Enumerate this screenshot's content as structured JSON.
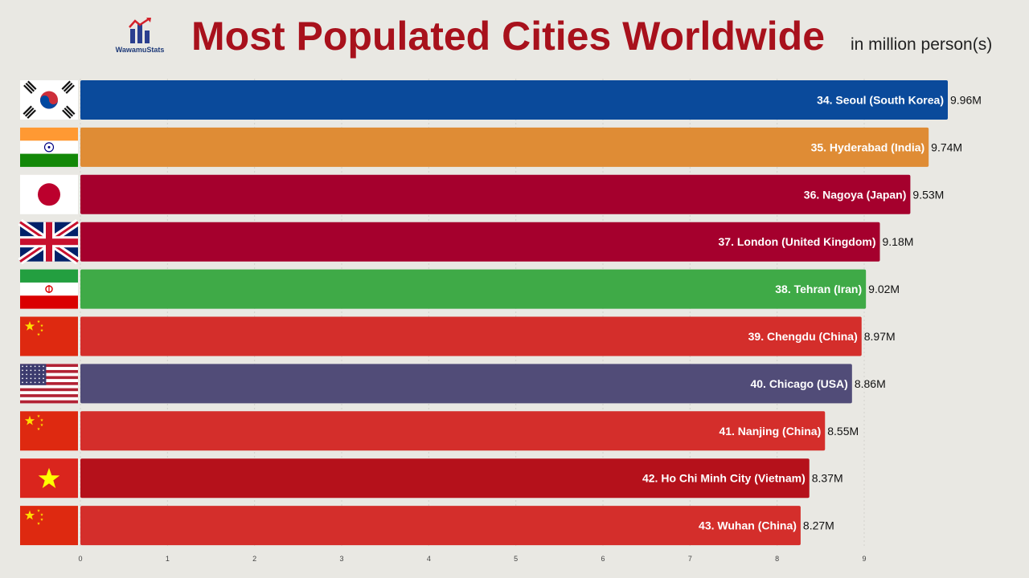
{
  "header": {
    "logo_text": "WawamuStats",
    "title": "Most Populated Cities Worldwide",
    "subtitle": "in million person(s)"
  },
  "chart_data": {
    "type": "bar",
    "orientation": "horizontal",
    "title": "Most Populated Cities Worldwide",
    "unit_label": "in million person(s)",
    "xlim": [
      0,
      9.96
    ],
    "xticks": [
      0,
      1,
      2,
      3,
      4,
      5,
      6,
      7,
      8,
      9
    ],
    "categories": [
      "34. Seoul (South Korea)",
      "35. Hyderabad (India)",
      "36. Nagoya (Japan)",
      "37. London (United Kingdom)",
      "38. Tehran (Iran)",
      "39. Chengdu (China)",
      "40. Chicago (USA)",
      "41. Nanjing (China)",
      "42. Ho Chi Minh City (Vietnam)",
      "43. Wuhan (China)"
    ],
    "values": [
      9.96,
      9.74,
      9.53,
      9.18,
      9.02,
      8.97,
      8.86,
      8.55,
      8.37,
      8.27
    ],
    "value_labels": [
      "9.96M",
      "9.74M",
      "9.53M",
      "9.18M",
      "9.02M",
      "8.97M",
      "8.86M",
      "8.55M",
      "8.37M",
      "8.27M"
    ],
    "flags": [
      "south-korea",
      "india",
      "japan",
      "united-kingdom",
      "iran",
      "china",
      "usa",
      "china",
      "vietnam",
      "china"
    ],
    "colors": [
      "#0a4a9b",
      "#df8c35",
      "#a5002d",
      "#a5002d",
      "#3faa47",
      "#d42e2b",
      "#514c78",
      "#d42e2b",
      "#b5111b",
      "#d42e2b"
    ]
  }
}
